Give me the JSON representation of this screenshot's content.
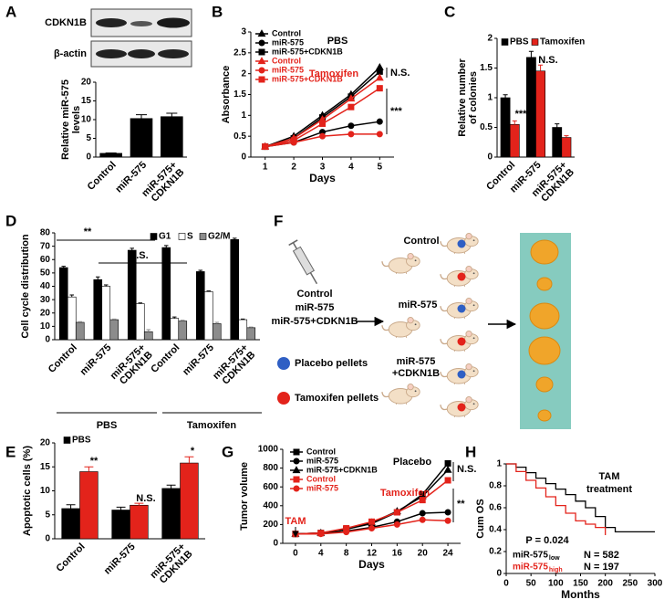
{
  "panel_labels": [
    "A",
    "B",
    "C",
    "D",
    "E",
    "F",
    "G",
    "H"
  ],
  "blot": {
    "rows": [
      "CDKN1B",
      "β-actin"
    ]
  },
  "diagram": {
    "groups": [
      "Control",
      "miR-575",
      "miR-575+CDKN1B"
    ],
    "cohorts": [
      "Control",
      "miR-575",
      [
        "miR-575",
        "+CDKN1B"
      ]
    ],
    "pellets": [
      "Placebo pellets",
      "Tamoxifen pellets"
    ]
  },
  "chart_data": [
    {
      "type": "bar",
      "ylabel": [
        "Relative miR-575",
        "levels"
      ],
      "categories": [
        "Control",
        "miR-575",
        [
          "miR-575+",
          "CDKN1B"
        ]
      ],
      "series": [
        {
          "color": "#000000",
          "values": [
            1,
            10.3,
            10.8
          ],
          "errors": [
            0.1,
            1.0,
            0.9
          ]
        }
      ],
      "ylim": [
        0,
        20
      ],
      "yticks": [
        0,
        5,
        10,
        15,
        20
      ]
    },
    {
      "type": "line",
      "xlabel": "Days",
      "ylabel": "Absorbance",
      "x": [
        1,
        2,
        3,
        4,
        5
      ],
      "xlim": [
        0.5,
        5.5
      ],
      "xticks": [
        1,
        2,
        3,
        4,
        5
      ],
      "ylim": [
        0,
        3
      ],
      "yticks": [
        0,
        0.5,
        1,
        1.5,
        2,
        2.5,
        3
      ],
      "series": [
        {
          "name": "Control",
          "color": "#000000",
          "marker": "triangle",
          "values": [
            0.25,
            0.5,
            1.0,
            1.5,
            2.15
          ]
        },
        {
          "name": "miR-575",
          "color": "#000000",
          "marker": "circle",
          "values": [
            0.25,
            0.35,
            0.6,
            0.75,
            0.85
          ]
        },
        {
          "name": "miR-575+CDKN1B",
          "color": "#000000",
          "marker": "square",
          "values": [
            0.25,
            0.45,
            0.95,
            1.45,
            2.05
          ]
        },
        {
          "name": "Control",
          "color": "#e3231b",
          "marker": "triangle",
          "values": [
            0.25,
            0.45,
            0.9,
            1.4,
            1.9
          ]
        },
        {
          "name": "miR-575",
          "color": "#e3231b",
          "marker": "circle",
          "values": [
            0.25,
            0.35,
            0.5,
            0.55,
            0.55
          ]
        },
        {
          "name": "miR-575+CDKN1B",
          "color": "#e3231b",
          "marker": "square",
          "values": [
            0.25,
            0.4,
            0.8,
            1.2,
            1.65
          ]
        }
      ],
      "annotations": [
        "PBS",
        "Tamoxifen",
        "N.S.",
        "***"
      ]
    },
    {
      "type": "bar",
      "ylabel": [
        "Relative number",
        "of colonies"
      ],
      "categories": [
        "Control",
        "miR-575",
        [
          "miR-575+",
          "CDKN1B"
        ]
      ],
      "series": [
        {
          "name": "PBS",
          "color": "#000000",
          "values": [
            1.0,
            1.68,
            0.5
          ],
          "errors": [
            0.05,
            0.1,
            0.06
          ]
        },
        {
          "name": "Tamoxifen",
          "color": "#e3231b",
          "values": [
            0.55,
            1.45,
            0.33
          ],
          "errors": [
            0.06,
            0.1,
            0.03
          ]
        }
      ],
      "ylim": [
        0,
        2
      ],
      "yticks": [
        0,
        0.5,
        1,
        1.5,
        2
      ],
      "annotations": [
        "***",
        "N.S."
      ]
    },
    {
      "type": "bar",
      "ylabel": "Cell cycle distribution",
      "categories": [
        "Control",
        "miR-575",
        [
          "miR-575+",
          "CDKN1B"
        ],
        "Control",
        "miR-575",
        [
          "miR-575+",
          "CDKN1B"
        ]
      ],
      "series": [
        {
          "name": "G1",
          "color": "#000000",
          "values": [
            54,
            45,
            67,
            69,
            51,
            75
          ],
          "errors": [
            1,
            2,
            1.5,
            1.5,
            1,
            1
          ]
        },
        {
          "name": "S",
          "color": "#ffffff",
          "values": [
            32,
            40,
            27,
            16,
            36,
            15
          ],
          "errors": [
            1.5,
            1,
            0.5,
            1,
            0.5,
            0.5
          ]
        },
        {
          "name": "G2/M",
          "color": "#8c8c8c",
          "values": [
            13,
            15,
            6,
            14,
            12,
            9
          ],
          "errors": [
            0.5,
            0.5,
            1.5,
            0.5,
            1,
            0.5
          ]
        }
      ],
      "ylim": [
        0,
        80
      ],
      "yticks": [
        0,
        10,
        20,
        30,
        40,
        50,
        60,
        70,
        80
      ],
      "annotations": [
        "**",
        "N.S."
      ],
      "groups": [
        "PBS",
        "Tamoxifen"
      ]
    },
    {
      "type": "bar",
      "ylabel": "Apoptotic cells (%)",
      "categories": [
        "Control",
        "miR-575",
        [
          "miR-575+",
          "CDKN1B"
        ]
      ],
      "series": [
        {
          "name": "PBS",
          "color": "#000000",
          "values": [
            6.3,
            6,
            10.5
          ],
          "errors": [
            0.8,
            0.6,
            0.7
          ]
        },
        {
          "color": "#e3231b",
          "values": [
            14,
            7,
            15.8
          ],
          "errors": [
            1.0,
            0.4,
            1.3
          ]
        }
      ],
      "ylim": [
        0,
        20
      ],
      "yticks": [
        0,
        5,
        10,
        15,
        20
      ],
      "annotations": [
        "**",
        "N.S.",
        "*"
      ]
    },
    {
      "type": "line",
      "xlabel": "Days",
      "ylabel": "Tumor volume",
      "x": [
        0,
        4,
        8,
        12,
        16,
        20,
        24
      ],
      "xlim": [
        -2,
        26
      ],
      "xticks": [
        0,
        4,
        8,
        12,
        16,
        20,
        24
      ],
      "ylim": [
        0,
        1000
      ],
      "yticks": [
        0,
        200,
        400,
        600,
        800,
        1000
      ],
      "series": [
        {
          "name": "Control",
          "color": "#000000",
          "marker": "square",
          "values": [
            100,
            110,
            150,
            210,
            330,
            520,
            850
          ]
        },
        {
          "name": "miR-575",
          "color": "#000000",
          "marker": "circle",
          "values": [
            100,
            105,
            130,
            170,
            230,
            320,
            330
          ]
        },
        {
          "name": "miR-575+CDKN1B",
          "color": "#000000",
          "marker": "triangle",
          "values": [
            100,
            110,
            150,
            220,
            340,
            500,
            780
          ]
        },
        {
          "name": "Control",
          "color": "#e3231b",
          "marker": "square",
          "values": [
            100,
            110,
            160,
            230,
            330,
            460,
            670
          ]
        },
        {
          "name": "miR-575",
          "color": "#e3231b",
          "marker": "circle",
          "values": [
            100,
            100,
            120,
            160,
            200,
            250,
            240
          ]
        }
      ],
      "annotations": [
        "Placebo",
        "Tamoxifen",
        "TAM",
        "N.S.",
        "**"
      ]
    },
    {
      "type": "step",
      "xlabel": "Months",
      "ylabel": "Cum OS",
      "xlim": [
        0,
        300
      ],
      "xticks": [
        0,
        50,
        100,
        150,
        200,
        250,
        300
      ],
      "ylim": [
        0,
        1
      ],
      "yticks": [
        0,
        0.2,
        0.4,
        0.6,
        0.8,
        1
      ],
      "series": [
        {
          "name": "miR-575",
          "name_sub": "low",
          "color": "#000000",
          "x": [
            0,
            20,
            40,
            60,
            80,
            100,
            120,
            140,
            160,
            180,
            200,
            220,
            250,
            300
          ],
          "values": [
            1,
            0.97,
            0.92,
            0.87,
            0.82,
            0.77,
            0.72,
            0.66,
            0.6,
            0.52,
            0.42,
            0.38,
            0.38,
            0.38
          ]
        },
        {
          "name": "miR-575",
          "name_sub": "high",
          "color": "#e3231b",
          "x": [
            0,
            20,
            40,
            60,
            80,
            100,
            120,
            140,
            160,
            180,
            200
          ],
          "values": [
            1,
            0.93,
            0.85,
            0.78,
            0.7,
            0.62,
            0.55,
            0.48,
            0.45,
            0.42,
            0.35
          ]
        }
      ],
      "annotations": [
        "TAM",
        "treatment",
        "P = 0.024",
        "N = 582",
        "N = 197"
      ]
    }
  ]
}
